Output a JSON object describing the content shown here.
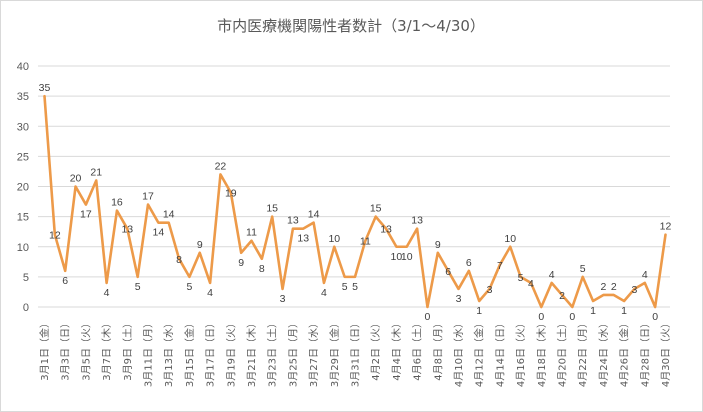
{
  "chart_data": {
    "type": "line",
    "title": "市内医療機関陽性者数計（3/1～4/30）",
    "ylim": [
      0,
      40
    ],
    "yticks": [
      0,
      5,
      10,
      15,
      20,
      25,
      30,
      35,
      40
    ],
    "grid": true,
    "legend": "none",
    "x": [
      "3月1日(金)",
      "3月2日",
      "3月3日(日)",
      "3月4日",
      "3月5日(火)",
      "3月6日",
      "3月7日(木)",
      "3月8日",
      "3月9日(土)",
      "3月10日",
      "3月11日(月)",
      "3月12日",
      "3月13日(水)",
      "3月14日",
      "3月15日(金)",
      "3月16日",
      "3月17日(日)",
      "3月18日",
      "3月19日(火)",
      "3月20日",
      "3月21日(木)",
      "3月22日",
      "3月23日(土)",
      "3月24日",
      "3月25日(月)",
      "3月26日",
      "3月27日(水)",
      "3月28日",
      "3月29日(金)",
      "3月30日",
      "3月31日(日)",
      "4月1日",
      "4月2日(火)",
      "4月3日",
      "4月4日(木)",
      "4月5日",
      "4月6日(土)",
      "4月7日",
      "4月8日(月)",
      "4月9日",
      "4月10日(水)",
      "4月11日",
      "4月12日(金)",
      "4月13日",
      "4月14日(日)",
      "4月15日",
      "4月16日(火)",
      "4月17日",
      "4月18日(木)",
      "4月19日",
      "4月20日(土)",
      "4月21日",
      "4月22日(月)",
      "4月23日",
      "4月24日(水)",
      "4月25日",
      "4月26日(金)",
      "4月27日",
      "4月28日(日)",
      "4月29日",
      "4月30日(火)"
    ],
    "xtick_labels": [
      "3月1日（金）",
      "3月3日（日）",
      "3月5日（火）",
      "3月7日（木）",
      "3月9日（土）",
      "3月11日（月）",
      "3月13日（水）",
      "3月15日（金）",
      "3月17日（日）",
      "3月19日（火）",
      "3月21日（木）",
      "3月23日（土）",
      "3月25日（月）",
      "3月27日（水）",
      "3月29日（金）",
      "3月31日（日）",
      "4月2日（火）",
      "4月4日（木）",
      "4月6日（土）",
      "4月8日（月）",
      "4月10日（水）",
      "4月12日（金）",
      "4月14日（日）",
      "4月16日（火）",
      "4月18日（木）",
      "4月20日（土）",
      "4月22日（月）",
      "4月24日（水）",
      "4月26日（金）",
      "4月28日（日）",
      "4月30日（火）"
    ],
    "series": [
      {
        "color": "#ED9A49",
        "values": [
          35,
          12,
          6,
          20,
          17,
          21,
          4,
          16,
          13,
          5,
          17,
          14,
          14,
          8,
          5,
          9,
          4,
          22,
          19,
          9,
          11,
          8,
          15,
          3,
          13,
          13,
          14,
          4,
          10,
          5,
          5,
          11,
          15,
          13,
          10,
          10,
          13,
          0,
          9,
          6,
          3,
          6,
          1,
          3,
          7,
          10,
          5,
          4,
          0,
          4,
          2,
          0,
          5,
          1,
          2,
          2,
          1,
          3,
          4,
          0,
          12
        ]
      }
    ]
  }
}
